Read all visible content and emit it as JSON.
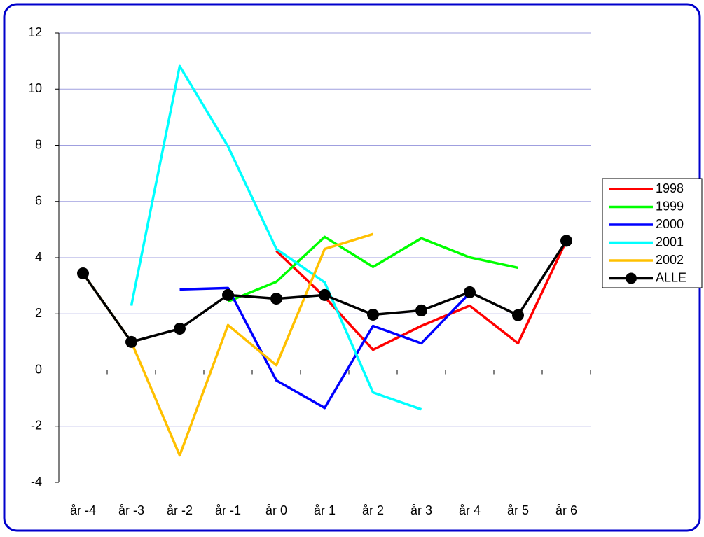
{
  "chart_data": {
    "type": "line",
    "categories": [
      "år -4",
      "år -3",
      "år -2",
      "år -1",
      "år 0",
      "år 1",
      "år 2",
      "år 3",
      "år 4",
      "år 5",
      "år 6"
    ],
    "series": [
      {
        "name": "1998",
        "color": "#ff0000",
        "values": [
          null,
          null,
          null,
          null,
          4.24,
          2.6,
          0.72,
          1.57,
          2.29,
          0.95,
          4.6
        ]
      },
      {
        "name": "1999",
        "color": "#00ff00",
        "values": [
          null,
          null,
          null,
          2.44,
          3.14,
          4.74,
          3.67,
          4.69,
          4.01,
          3.64,
          null
        ]
      },
      {
        "name": "2000",
        "color": "#0000ff",
        "values": [
          null,
          null,
          2.87,
          2.92,
          -0.37,
          -1.35,
          1.57,
          0.95,
          2.74,
          null,
          null
        ]
      },
      {
        "name": "2001",
        "color": "#00ffff",
        "values": [
          null,
          2.29,
          10.82,
          7.96,
          4.31,
          3.12,
          -0.8,
          -1.4,
          null,
          null,
          null
        ]
      },
      {
        "name": "2002",
        "color": "#ffc000",
        "values": [
          3.44,
          1.0,
          -3.04,
          1.6,
          0.17,
          4.31,
          4.84,
          null,
          null,
          null,
          null
        ]
      },
      {
        "name": "ALLE",
        "color": "#000000",
        "marker": "circle",
        "values": [
          3.44,
          1.0,
          1.47,
          2.67,
          2.54,
          2.67,
          1.97,
          2.12,
          2.77,
          1.95,
          4.6
        ]
      }
    ],
    "ylim": [
      -4,
      12
    ],
    "yticks": [
      -4,
      -2,
      0,
      2,
      4,
      6,
      8,
      10,
      12
    ],
    "grid": true,
    "legend": "right"
  }
}
